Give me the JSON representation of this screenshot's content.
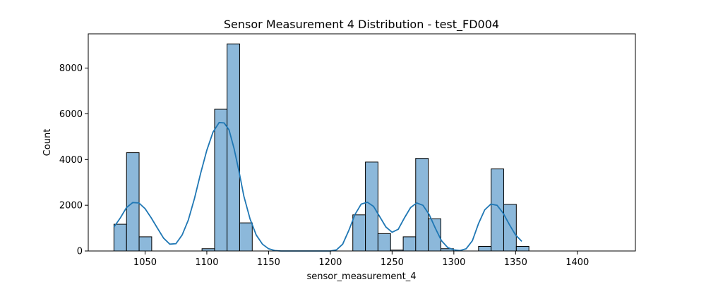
{
  "chart_data": {
    "type": "bar",
    "title": "Sensor Measurement 4 Distribution - test_FD004",
    "xlabel": "sensor_measurement_4",
    "ylabel": "Count",
    "xlim": [
      1004,
      1447
    ],
    "ylim": [
      0,
      9500
    ],
    "xticks": [
      1050,
      1100,
      1150,
      1200,
      1250,
      1300,
      1350,
      1400
    ],
    "yticks": [
      0,
      2000,
      4000,
      6000,
      8000
    ],
    "grid": false,
    "bin_width": 10.18,
    "bins": [
      {
        "x0": 1024.8,
        "value": 1170
      },
      {
        "x0": 1035.0,
        "value": 4300
      },
      {
        "x0": 1045.2,
        "value": 620
      },
      {
        "x0": 1055.4,
        "value": 0
      },
      {
        "x0": 1065.5,
        "value": 0
      },
      {
        "x0": 1075.7,
        "value": 0
      },
      {
        "x0": 1085.9,
        "value": 0
      },
      {
        "x0": 1096.1,
        "value": 100
      },
      {
        "x0": 1106.3,
        "value": 6200
      },
      {
        "x0": 1116.4,
        "value": 9060
      },
      {
        "x0": 1126.6,
        "value": 1230
      },
      {
        "x0": 1136.8,
        "value": 0
      },
      {
        "x0": 1147.0,
        "value": 0
      },
      {
        "x0": 1157.2,
        "value": 0
      },
      {
        "x0": 1167.3,
        "value": 0
      },
      {
        "x0": 1177.5,
        "value": 0
      },
      {
        "x0": 1187.7,
        "value": 0
      },
      {
        "x0": 1197.9,
        "value": 0
      },
      {
        "x0": 1208.1,
        "value": 0
      },
      {
        "x0": 1218.2,
        "value": 1580
      },
      {
        "x0": 1228.4,
        "value": 3890
      },
      {
        "x0": 1238.6,
        "value": 760
      },
      {
        "x0": 1248.8,
        "value": 40
      },
      {
        "x0": 1259.0,
        "value": 620
      },
      {
        "x0": 1269.1,
        "value": 4050
      },
      {
        "x0": 1279.3,
        "value": 1410
      },
      {
        "x0": 1289.5,
        "value": 100
      },
      {
        "x0": 1299.7,
        "value": 0
      },
      {
        "x0": 1309.9,
        "value": 0
      },
      {
        "x0": 1320.0,
        "value": 200
      },
      {
        "x0": 1330.2,
        "value": 3590
      },
      {
        "x0": 1340.4,
        "value": 2040
      },
      {
        "x0": 1350.6,
        "value": 200
      }
    ],
    "kde": {
      "name": "",
      "points": [
        [
          1024.8,
          1050
        ],
        [
          1030,
          1450
        ],
        [
          1035,
          1900
        ],
        [
          1040,
          2120
        ],
        [
          1045,
          2100
        ],
        [
          1050,
          1850
        ],
        [
          1055,
          1450
        ],
        [
          1060,
          1000
        ],
        [
          1065,
          560
        ],
        [
          1070,
          300
        ],
        [
          1075,
          320
        ],
        [
          1080,
          700
        ],
        [
          1085,
          1350
        ],
        [
          1090,
          2300
        ],
        [
          1095,
          3400
        ],
        [
          1100,
          4400
        ],
        [
          1105,
          5200
        ],
        [
          1110,
          5620
        ],
        [
          1114,
          5600
        ],
        [
          1118,
          5300
        ],
        [
          1122,
          4500
        ],
        [
          1126,
          3500
        ],
        [
          1130,
          2400
        ],
        [
          1135,
          1400
        ],
        [
          1140,
          700
        ],
        [
          1145,
          300
        ],
        [
          1150,
          100
        ],
        [
          1155,
          20
        ],
        [
          1160,
          0
        ],
        [
          1170,
          0
        ],
        [
          1180,
          0
        ],
        [
          1190,
          0
        ],
        [
          1200,
          0
        ],
        [
          1205,
          50
        ],
        [
          1210,
          300
        ],
        [
          1215,
          900
        ],
        [
          1220,
          1600
        ],
        [
          1225,
          2050
        ],
        [
          1230,
          2130
        ],
        [
          1235,
          1950
        ],
        [
          1240,
          1500
        ],
        [
          1245,
          1050
        ],
        [
          1250,
          820
        ],
        [
          1255,
          950
        ],
        [
          1260,
          1450
        ],
        [
          1265,
          1900
        ],
        [
          1270,
          2100
        ],
        [
          1275,
          2000
        ],
        [
          1280,
          1600
        ],
        [
          1285,
          1000
        ],
        [
          1290,
          450
        ],
        [
          1295,
          150
        ],
        [
          1300,
          50
        ],
        [
          1305,
          20
        ],
        [
          1310,
          100
        ],
        [
          1315,
          450
        ],
        [
          1320,
          1200
        ],
        [
          1325,
          1800
        ],
        [
          1330,
          2050
        ],
        [
          1335,
          2000
        ],
        [
          1340,
          1650
        ],
        [
          1345,
          1150
        ],
        [
          1350,
          700
        ],
        [
          1355,
          420
        ]
      ]
    }
  }
}
